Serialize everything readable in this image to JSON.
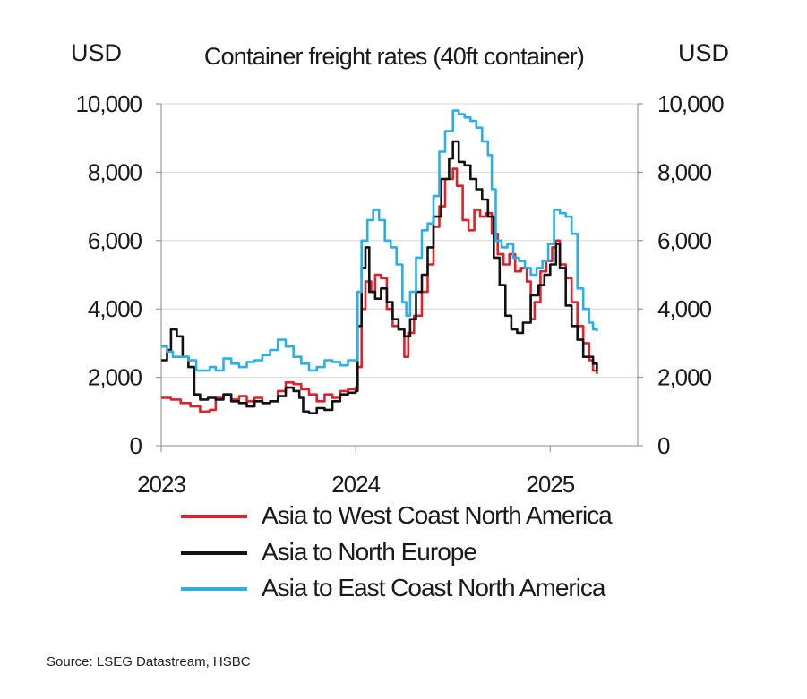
{
  "chart_data": {
    "type": "line",
    "title": "Container freight rates (40ft container)",
    "left_unit": "USD",
    "right_unit": "USD",
    "xlim": [
      2023.0,
      2025.45
    ],
    "ylim": [
      0,
      10000
    ],
    "x_ticks": [
      2023,
      2024,
      2025
    ],
    "x_tick_labels": [
      "2023",
      "2024",
      "2025"
    ],
    "y_ticks": [
      0,
      2000,
      4000,
      6000,
      8000,
      10000
    ],
    "y_tick_labels": [
      "0",
      "2,000",
      "4,000",
      "6,000",
      "8,000",
      "10,000"
    ],
    "grid": true,
    "legend_position": "bottom",
    "series": [
      {
        "name": "Asia to West Coast North America",
        "color": "#e0202a",
        "points": [
          [
            2023.0,
            1400
          ],
          [
            2023.05,
            1350
          ],
          [
            2023.1,
            1250
          ],
          [
            2023.15,
            1150
          ],
          [
            2023.2,
            1000
          ],
          [
            2023.25,
            1050
          ],
          [
            2023.28,
            1400
          ],
          [
            2023.32,
            1500
          ],
          [
            2023.36,
            1350
          ],
          [
            2023.4,
            1450
          ],
          [
            2023.44,
            1300
          ],
          [
            2023.48,
            1400
          ],
          [
            2023.52,
            1250
          ],
          [
            2023.56,
            1300
          ],
          [
            2023.6,
            1600
          ],
          [
            2023.64,
            1850
          ],
          [
            2023.68,
            1800
          ],
          [
            2023.72,
            1650
          ],
          [
            2023.76,
            1500
          ],
          [
            2023.8,
            1300
          ],
          [
            2023.84,
            1500
          ],
          [
            2023.88,
            1400
          ],
          [
            2023.92,
            1600
          ],
          [
            2023.96,
            1650
          ],
          [
            2024.0,
            1700
          ],
          [
            2024.01,
            2300
          ],
          [
            2024.03,
            4000
          ],
          [
            2024.05,
            4800
          ],
          [
            2024.08,
            4500
          ],
          [
            2024.1,
            5000
          ],
          [
            2024.13,
            4900
          ],
          [
            2024.16,
            4000
          ],
          [
            2024.19,
            3500
          ],
          [
            2024.22,
            3400
          ],
          [
            2024.25,
            2600
          ],
          [
            2024.27,
            3300
          ],
          [
            2024.3,
            3800
          ],
          [
            2024.34,
            4500
          ],
          [
            2024.37,
            5300
          ],
          [
            2024.4,
            6400
          ],
          [
            2024.43,
            7000
          ],
          [
            2024.46,
            7800
          ],
          [
            2024.5,
            8100
          ],
          [
            2024.52,
            7600
          ],
          [
            2024.55,
            6600
          ],
          [
            2024.58,
            6300
          ],
          [
            2024.61,
            6900
          ],
          [
            2024.64,
            6700
          ],
          [
            2024.67,
            6800
          ],
          [
            2024.7,
            6200
          ],
          [
            2024.73,
            5600
          ],
          [
            2024.76,
            5300
          ],
          [
            2024.79,
            5600
          ],
          [
            2024.82,
            5100
          ],
          [
            2024.85,
            5200
          ],
          [
            2024.88,
            4800
          ],
          [
            2024.9,
            3700
          ],
          [
            2024.92,
            4200
          ],
          [
            2024.95,
            5100
          ],
          [
            2024.98,
            5400
          ],
          [
            2025.01,
            5800
          ],
          [
            2025.03,
            6000
          ],
          [
            2025.05,
            5300
          ],
          [
            2025.08,
            4900
          ],
          [
            2025.11,
            4200
          ],
          [
            2025.14,
            3500
          ],
          [
            2025.17,
            3000
          ],
          [
            2025.2,
            2500
          ],
          [
            2025.22,
            2200
          ],
          [
            2025.24,
            2100
          ]
        ]
      },
      {
        "name": "Asia to North Europe",
        "color": "#111111",
        "points": [
          [
            2023.0,
            2500
          ],
          [
            2023.03,
            2800
          ],
          [
            2023.05,
            3400
          ],
          [
            2023.08,
            3200
          ],
          [
            2023.11,
            2600
          ],
          [
            2023.14,
            2300
          ],
          [
            2023.17,
            1500
          ],
          [
            2023.2,
            1350
          ],
          [
            2023.24,
            1400
          ],
          [
            2023.28,
            1350
          ],
          [
            2023.32,
            1500
          ],
          [
            2023.36,
            1300
          ],
          [
            2023.4,
            1250
          ],
          [
            2023.44,
            1150
          ],
          [
            2023.48,
            1300
          ],
          [
            2023.52,
            1250
          ],
          [
            2023.56,
            1300
          ],
          [
            2023.6,
            1450
          ],
          [
            2023.64,
            1700
          ],
          [
            2023.68,
            1600
          ],
          [
            2023.71,
            1400
          ],
          [
            2023.73,
            1000
          ],
          [
            2023.76,
            950
          ],
          [
            2023.8,
            1100
          ],
          [
            2023.84,
            1050
          ],
          [
            2023.88,
            1300
          ],
          [
            2023.92,
            1500
          ],
          [
            2023.96,
            1550
          ],
          [
            2024.0,
            1600
          ],
          [
            2024.01,
            3500
          ],
          [
            2024.03,
            5200
          ],
          [
            2024.05,
            5800
          ],
          [
            2024.07,
            4500
          ],
          [
            2024.1,
            4300
          ],
          [
            2024.13,
            4600
          ],
          [
            2024.16,
            4200
          ],
          [
            2024.19,
            3700
          ],
          [
            2024.22,
            3400
          ],
          [
            2024.25,
            3200
          ],
          [
            2024.28,
            3700
          ],
          [
            2024.31,
            4500
          ],
          [
            2024.34,
            5000
          ],
          [
            2024.37,
            5800
          ],
          [
            2024.4,
            6700
          ],
          [
            2024.44,
            7800
          ],
          [
            2024.48,
            8400
          ],
          [
            2024.5,
            8900
          ],
          [
            2024.53,
            8300
          ],
          [
            2024.56,
            8200
          ],
          [
            2024.59,
            7800
          ],
          [
            2024.62,
            7500
          ],
          [
            2024.65,
            7200
          ],
          [
            2024.68,
            6700
          ],
          [
            2024.71,
            5500
          ],
          [
            2024.74,
            4700
          ],
          [
            2024.77,
            3800
          ],
          [
            2024.8,
            3400
          ],
          [
            2024.83,
            3300
          ],
          [
            2024.86,
            3600
          ],
          [
            2024.9,
            4400
          ],
          [
            2024.94,
            4700
          ],
          [
            2024.97,
            5000
          ],
          [
            2025.0,
            5300
          ],
          [
            2025.03,
            5900
          ],
          [
            2025.05,
            5200
          ],
          [
            2025.08,
            4100
          ],
          [
            2025.11,
            3500
          ],
          [
            2025.14,
            3100
          ],
          [
            2025.17,
            2600
          ],
          [
            2025.2,
            2600
          ],
          [
            2025.22,
            2400
          ],
          [
            2025.24,
            2200
          ]
        ]
      },
      {
        "name": "Asia to East Coast North America",
        "color": "#2ab0e6",
        "points": [
          [
            2023.0,
            2900
          ],
          [
            2023.03,
            2750
          ],
          [
            2023.06,
            2600
          ],
          [
            2023.1,
            2600
          ],
          [
            2023.14,
            2500
          ],
          [
            2023.18,
            2200
          ],
          [
            2023.22,
            2200
          ],
          [
            2023.25,
            2300
          ],
          [
            2023.28,
            2200
          ],
          [
            2023.32,
            2550
          ],
          [
            2023.36,
            2400
          ],
          [
            2023.4,
            2300
          ],
          [
            2023.44,
            2450
          ],
          [
            2023.48,
            2500
          ],
          [
            2023.52,
            2650
          ],
          [
            2023.56,
            2800
          ],
          [
            2023.6,
            3100
          ],
          [
            2023.64,
            2900
          ],
          [
            2023.68,
            2600
          ],
          [
            2023.72,
            2400
          ],
          [
            2023.76,
            2200
          ],
          [
            2023.8,
            2300
          ],
          [
            2023.84,
            2500
          ],
          [
            2023.88,
            2450
          ],
          [
            2023.92,
            2350
          ],
          [
            2023.96,
            2500
          ],
          [
            2024.0,
            2500
          ],
          [
            2024.01,
            4500
          ],
          [
            2024.03,
            6000
          ],
          [
            2024.06,
            6600
          ],
          [
            2024.09,
            6900
          ],
          [
            2024.12,
            6600
          ],
          [
            2024.15,
            6000
          ],
          [
            2024.18,
            5800
          ],
          [
            2024.21,
            5300
          ],
          [
            2024.24,
            4200
          ],
          [
            2024.26,
            3800
          ],
          [
            2024.28,
            4500
          ],
          [
            2024.31,
            5500
          ],
          [
            2024.34,
            6300
          ],
          [
            2024.37,
            6500
          ],
          [
            2024.4,
            7300
          ],
          [
            2024.43,
            8600
          ],
          [
            2024.46,
            9200
          ],
          [
            2024.5,
            9800
          ],
          [
            2024.53,
            9700
          ],
          [
            2024.56,
            9600
          ],
          [
            2024.59,
            9500
          ],
          [
            2024.62,
            9300
          ],
          [
            2024.65,
            8900
          ],
          [
            2024.68,
            8500
          ],
          [
            2024.7,
            7500
          ],
          [
            2024.72,
            6000
          ],
          [
            2024.75,
            5800
          ],
          [
            2024.78,
            5900
          ],
          [
            2024.81,
            5500
          ],
          [
            2024.84,
            5400
          ],
          [
            2024.87,
            5200
          ],
          [
            2024.9,
            5000
          ],
          [
            2024.93,
            5200
          ],
          [
            2024.96,
            5400
          ],
          [
            2024.99,
            5900
          ],
          [
            2025.02,
            6900
          ],
          [
            2025.05,
            6800
          ],
          [
            2025.08,
            6700
          ],
          [
            2025.11,
            6200
          ],
          [
            2025.14,
            4600
          ],
          [
            2025.17,
            4000
          ],
          [
            2025.2,
            3600
          ],
          [
            2025.22,
            3400
          ],
          [
            2025.24,
            3350
          ]
        ]
      }
    ]
  },
  "source": "Source: LSEG Datastream, HSBC"
}
